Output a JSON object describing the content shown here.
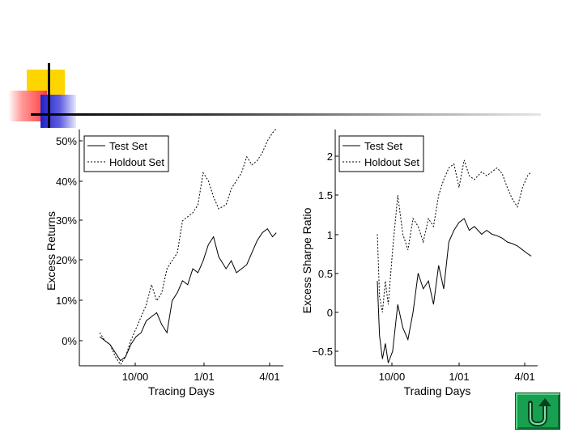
{
  "colors": {
    "accent_yellow": "#ffd500",
    "accent_red": "#ff3b3b",
    "accent_blue": "#2020c8",
    "home_button": "#16a050"
  },
  "icons": {
    "home_button_icon": "u-turn-back-arrow-icon"
  },
  "chart_data": [
    {
      "type": "line",
      "xlabel": "Tracing Days",
      "ylabel": "Excess Returns",
      "x_ticks": [
        "10/00",
        "1/01",
        "4/01"
      ],
      "y_ticks": [
        "0%",
        "10%",
        "20%",
        "30%",
        "40%",
        "50%"
      ],
      "ylim": [
        -7,
        52
      ],
      "x_domain": [
        "2000-08-14",
        "2001-04-10"
      ],
      "grid": false,
      "legend_position": "top-left",
      "series": [
        {
          "name": "Test Set",
          "style": "solid",
          "x": [
            "2000-08-14",
            "2000-08-21",
            "2000-08-28",
            "2000-09-04",
            "2000-09-11",
            "2000-09-18",
            "2000-09-25",
            "2000-10-02",
            "2000-10-09",
            "2000-10-16",
            "2000-10-23",
            "2000-10-30",
            "2000-11-06",
            "2000-11-13",
            "2000-11-20",
            "2000-11-27",
            "2000-12-04",
            "2000-12-11",
            "2000-12-18",
            "2000-12-25",
            "2001-01-01",
            "2001-01-08",
            "2001-01-15",
            "2001-01-22",
            "2001-02-01",
            "2001-02-08",
            "2001-02-15",
            "2001-02-22",
            "2001-03-01",
            "2001-03-08",
            "2001-03-15",
            "2001-03-22",
            "2001-03-29",
            "2001-04-05",
            "2001-04-10"
          ],
          "values": [
            1,
            0,
            -1,
            -3,
            -5,
            -4,
            -1,
            1,
            2,
            5,
            6,
            7,
            4,
            2,
            10,
            12,
            15,
            14,
            18,
            17,
            20,
            24,
            26,
            21,
            18,
            20,
            17,
            18,
            19,
            22,
            25,
            27,
            28,
            26,
            27
          ]
        },
        {
          "name": "Holdout Set",
          "style": "dashed",
          "x": [
            "2000-08-14",
            "2000-08-21",
            "2000-08-28",
            "2000-09-04",
            "2000-09-11",
            "2000-09-18",
            "2000-09-25",
            "2000-10-02",
            "2000-10-09",
            "2000-10-16",
            "2000-10-23",
            "2000-10-30",
            "2000-11-06",
            "2000-11-13",
            "2000-11-20",
            "2000-11-27",
            "2000-12-04",
            "2000-12-11",
            "2000-12-18",
            "2000-12-25",
            "2001-01-01",
            "2001-01-08",
            "2001-01-15",
            "2001-01-22",
            "2001-02-01",
            "2001-02-08",
            "2001-02-15",
            "2001-02-22",
            "2001-03-01",
            "2001-03-08",
            "2001-03-15",
            "2001-03-22",
            "2001-03-29",
            "2001-04-05",
            "2001-04-10"
          ],
          "values": [
            2,
            0,
            -1,
            -4,
            -6,
            -4,
            0,
            3,
            6,
            9,
            14,
            10,
            12,
            18,
            20,
            22,
            30,
            31,
            32,
            34,
            42,
            40,
            36,
            33,
            34,
            38,
            40,
            42,
            46,
            44,
            45,
            47,
            50,
            52,
            53
          ]
        }
      ]
    },
    {
      "type": "line",
      "xlabel": "Trading Days",
      "ylabel": "Excess Sharpe Ratio",
      "x_ticks": [
        "10/00",
        "1/01",
        "4/01"
      ],
      "y_ticks": [
        "−0.5",
        "0",
        "0.5",
        "1",
        "1.5",
        "2"
      ],
      "ylim": [
        -0.7,
        2.35
      ],
      "x_domain": [
        "2000-08-14",
        "2001-04-10"
      ],
      "grid": false,
      "legend_position": "top-left",
      "series": [
        {
          "name": "Test Set",
          "style": "solid",
          "x": [
            "2000-09-11",
            "2000-09-14",
            "2000-09-18",
            "2000-09-22",
            "2000-09-26",
            "2000-10-02",
            "2000-10-09",
            "2000-10-16",
            "2000-10-23",
            "2000-10-30",
            "2000-11-06",
            "2000-11-13",
            "2000-11-20",
            "2000-11-27",
            "2000-12-04",
            "2000-12-11",
            "2000-12-18",
            "2000-12-25",
            "2001-01-01",
            "2001-01-08",
            "2001-01-15",
            "2001-01-22",
            "2001-02-01",
            "2001-02-08",
            "2001-02-15",
            "2001-02-22",
            "2001-03-01",
            "2001-03-08",
            "2001-03-15",
            "2001-03-22",
            "2001-03-29",
            "2001-04-05",
            "2001-04-10"
          ],
          "values": [
            0.4,
            -0.3,
            -0.6,
            -0.4,
            -0.65,
            -0.5,
            0.1,
            -0.2,
            -0.35,
            0.0,
            0.5,
            0.3,
            0.4,
            0.1,
            0.6,
            0.3,
            0.9,
            1.05,
            1.15,
            1.2,
            1.05,
            1.1,
            1.0,
            1.05,
            1.0,
            0.98,
            0.95,
            0.9,
            0.88,
            0.85,
            0.8,
            0.75,
            0.72
          ]
        },
        {
          "name": "Holdout Set",
          "style": "dashed",
          "x": [
            "2000-09-11",
            "2000-09-14",
            "2000-09-18",
            "2000-09-22",
            "2000-09-26",
            "2000-10-02",
            "2000-10-09",
            "2000-10-16",
            "2000-10-23",
            "2000-10-30",
            "2000-11-06",
            "2000-11-13",
            "2000-11-20",
            "2000-11-27",
            "2000-12-04",
            "2000-12-11",
            "2000-12-18",
            "2000-12-25",
            "2001-01-01",
            "2001-01-08",
            "2001-01-15",
            "2001-01-22",
            "2001-02-01",
            "2001-02-08",
            "2001-02-15",
            "2001-02-22",
            "2001-03-01",
            "2001-03-08",
            "2001-03-15",
            "2001-03-22",
            "2001-03-29",
            "2001-04-05",
            "2001-04-10"
          ],
          "values": [
            1.0,
            0.2,
            0.0,
            0.4,
            0.1,
            0.8,
            1.5,
            1.0,
            0.8,
            1.2,
            1.1,
            0.9,
            1.2,
            1.1,
            1.5,
            1.7,
            1.85,
            1.9,
            1.6,
            1.95,
            1.75,
            1.7,
            1.8,
            1.75,
            1.8,
            1.85,
            1.78,
            1.6,
            1.45,
            1.35,
            1.6,
            1.75,
            1.8
          ]
        }
      ]
    }
  ]
}
